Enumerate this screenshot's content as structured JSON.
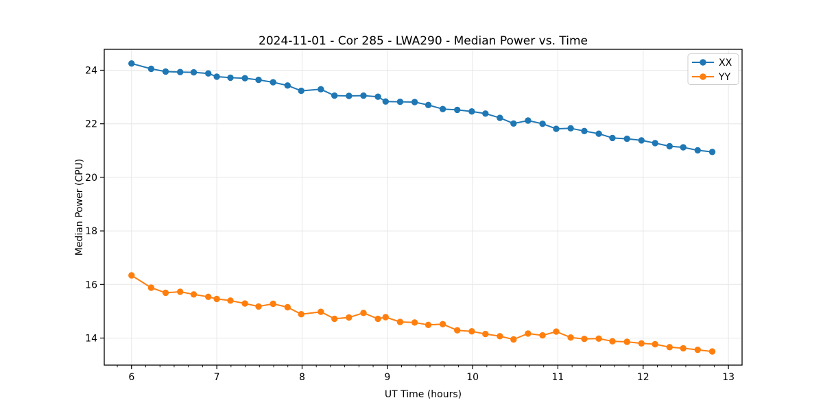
{
  "figure": {
    "background": "#ffffff",
    "spine_color": "#000000",
    "grid_color": "#e6e6e6",
    "tick_color": "#000000"
  },
  "chart_data": {
    "type": "line",
    "title": "2024-11-01 - Cor 285 - LWA290 - Median Power vs. Time",
    "xlabel": "UT Time (hours)",
    "ylabel": "Median Power (CPU)",
    "xlim": [
      5.68,
      13.16
    ],
    "ylim": [
      12.99,
      24.78
    ],
    "x_ticks": [
      6,
      7,
      8,
      9,
      10,
      11,
      12,
      13
    ],
    "y_ticks": [
      14,
      16,
      18,
      20,
      22,
      24
    ],
    "x_minor_step": 0.1666667,
    "grid": true,
    "legend_position": "upper right",
    "x": [
      6.0,
      6.23,
      6.4,
      6.57,
      6.73,
      6.9,
      7.0,
      7.16,
      7.33,
      7.49,
      7.66,
      7.83,
      7.99,
      8.22,
      8.38,
      8.55,
      8.72,
      8.89,
      8.98,
      9.15,
      9.32,
      9.48,
      9.65,
      9.82,
      9.99,
      10.15,
      10.32,
      10.48,
      10.65,
      10.82,
      10.98,
      11.15,
      11.31,
      11.48,
      11.64,
      11.81,
      11.98,
      12.14,
      12.31,
      12.47,
      12.64,
      12.81
    ],
    "series": [
      {
        "name": "XX",
        "color": "#1f77b4",
        "marker": "circle",
        "values": [
          24.25,
          24.05,
          23.95,
          23.93,
          23.92,
          23.88,
          23.76,
          23.72,
          23.7,
          23.64,
          23.55,
          23.43,
          23.23,
          23.29,
          23.05,
          23.04,
          23.05,
          23.01,
          22.83,
          22.82,
          22.81,
          22.7,
          22.55,
          22.52,
          22.46,
          22.38,
          22.22,
          22.01,
          22.12,
          22.0,
          21.81,
          21.83,
          21.73,
          21.63,
          21.47,
          21.44,
          21.38,
          21.28,
          21.16,
          21.12,
          21.01,
          20.95
        ]
      },
      {
        "name": "YY",
        "color": "#ff7f0e",
        "marker": "circle",
        "values": [
          16.34,
          15.88,
          15.69,
          15.73,
          15.63,
          15.54,
          15.46,
          15.4,
          15.29,
          15.18,
          15.28,
          15.15,
          14.89,
          14.98,
          14.72,
          14.77,
          14.94,
          14.72,
          14.78,
          14.6,
          14.58,
          14.49,
          14.52,
          14.29,
          14.25,
          14.15,
          14.07,
          13.95,
          14.17,
          14.1,
          14.24,
          14.02,
          13.97,
          13.98,
          13.88,
          13.86,
          13.8,
          13.77,
          13.66,
          13.62,
          13.56,
          13.5
        ]
      }
    ]
  }
}
